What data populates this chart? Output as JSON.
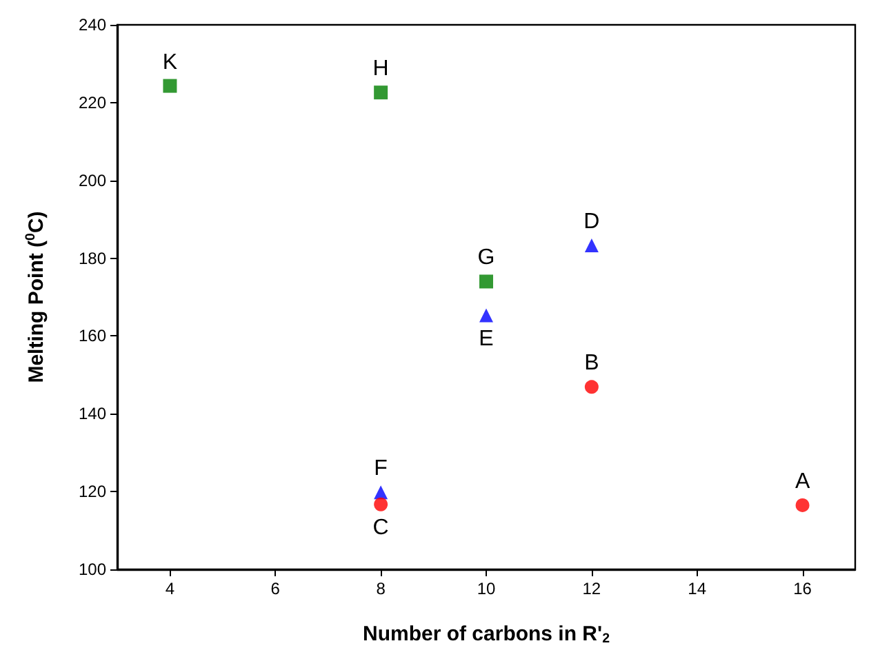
{
  "chart_data": {
    "type": "scatter",
    "xlabel": "Number of carbons in R'$_{2}$",
    "ylabel": "Melting Point ($^{0}$C)",
    "xlim": [
      3,
      17
    ],
    "xticks": [
      4,
      6,
      8,
      10,
      12,
      14,
      16
    ],
    "ylim": [
      100,
      240
    ],
    "yticks": [
      100,
      120,
      140,
      160,
      180,
      200,
      220,
      240
    ],
    "grid": false,
    "series": [
      {
        "color": "#008000",
        "marker": "square",
        "x": [
          4,
          8,
          10
        ],
        "values": [
          224.3,
          222.6,
          174
        ]
      },
      {
        "color": "#0000ff",
        "marker": "triangle",
        "x": [
          8,
          10,
          12
        ],
        "values": [
          119.8,
          165.3,
          183.3
        ]
      },
      {
        "color": "#ff0000",
        "marker": "circle",
        "x": [
          8,
          12,
          16
        ],
        "values": [
          116.7,
          146.9,
          116.5
        ]
      }
    ],
    "annotations": [
      {
        "text": "K",
        "x": 4,
        "y": 224.3
      },
      {
        "text": "H",
        "x": 8,
        "y": 222.6
      },
      {
        "text": "G",
        "x": 10,
        "y": 174
      },
      {
        "text": "E",
        "x": 10,
        "y": 165.3
      },
      {
        "text": "D",
        "x": 12,
        "y": 183.3
      },
      {
        "text": "B",
        "x": 12,
        "y": 146.9
      },
      {
        "text": "F",
        "x": 8,
        "y": 119.8
      },
      {
        "text": "C",
        "x": 8,
        "y": 116.7
      },
      {
        "text": "A",
        "x": 16,
        "y": 116.5
      }
    ]
  }
}
